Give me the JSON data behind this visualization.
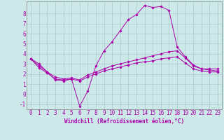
{
  "background_color": "#cce8e8",
  "grid_color": "#aacccc",
  "line_color": "#aa00aa",
  "marker_color": "#aa00aa",
  "xlabel": "Windchill (Refroidissement éolien,°C)",
  "xlabel_fontsize": 5.5,
  "tick_fontsize": 5.5,
  "ylim": [
    -1.5,
    9.2
  ],
  "xlim": [
    -0.5,
    23.5
  ],
  "yticks": [
    -1,
    0,
    1,
    2,
    3,
    4,
    5,
    6,
    7,
    8
  ],
  "xticks": [
    0,
    1,
    2,
    3,
    4,
    5,
    6,
    7,
    8,
    9,
    10,
    11,
    12,
    13,
    14,
    15,
    16,
    17,
    18,
    19,
    20,
    21,
    22,
    23
  ],
  "series": [
    {
      "x": [
        0,
        1,
        2,
        3,
        4,
        5,
        6,
        7,
        8,
        9,
        10,
        11,
        12,
        13,
        14,
        15,
        16,
        17,
        18,
        19,
        20,
        21,
        22,
        23
      ],
      "y": [
        3.5,
        3.0,
        2.2,
        1.4,
        1.3,
        1.5,
        -1.2,
        0.3,
        2.8,
        4.3,
        5.2,
        6.3,
        7.4,
        7.9,
        8.8,
        8.6,
        8.7,
        8.3,
        4.7,
        3.7,
        2.9,
        2.5,
        2.5,
        2.5
      ]
    },
    {
      "x": [
        0,
        1,
        2,
        3,
        4,
        5,
        6,
        7,
        8,
        9,
        10,
        11,
        12,
        13,
        14,
        15,
        16,
        17,
        18,
        19,
        20,
        21,
        22,
        23
      ],
      "y": [
        3.5,
        2.8,
        2.2,
        1.7,
        1.5,
        1.6,
        1.4,
        1.9,
        2.2,
        2.5,
        2.8,
        3.0,
        3.2,
        3.4,
        3.6,
        3.8,
        4.0,
        4.2,
        4.3,
        3.6,
        2.8,
        2.5,
        2.4,
        2.3
      ]
    },
    {
      "x": [
        0,
        1,
        2,
        3,
        4,
        5,
        6,
        7,
        8,
        9,
        10,
        11,
        12,
        13,
        14,
        15,
        16,
        17,
        18,
        19,
        20,
        21,
        22,
        23
      ],
      "y": [
        3.5,
        2.6,
        2.1,
        1.5,
        1.4,
        1.5,
        1.3,
        1.7,
        2.0,
        2.3,
        2.5,
        2.7,
        2.9,
        3.1,
        3.2,
        3.3,
        3.5,
        3.6,
        3.7,
        3.1,
        2.5,
        2.3,
        2.2,
        2.2
      ]
    }
  ]
}
